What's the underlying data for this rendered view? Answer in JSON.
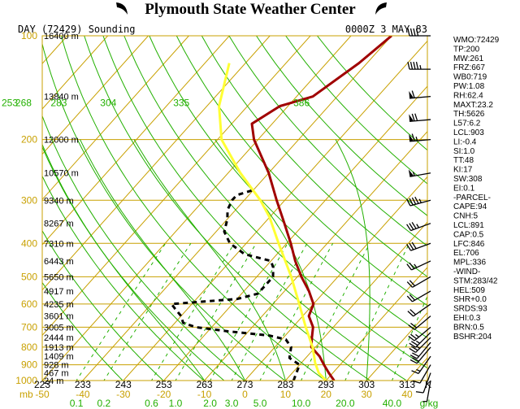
{
  "chart_data": {
    "type": "line",
    "title": "Plymouth State Weather Center",
    "subtitle_left": "DAY (72429) Sounding",
    "subtitle_right": "0000Z  3 MAY 83",
    "pressure_labels": [
      "100",
      "200",
      "300",
      "400",
      "500",
      "600",
      "700",
      "800",
      "900",
      "1000"
    ],
    "pressure_levels": [
      100,
      200,
      300,
      400,
      500,
      600,
      700,
      800,
      900,
      1000
    ],
    "height_labels": [
      {
        "p": 100,
        "label": "16400 m"
      },
      {
        "p": 150,
        "label": "13840 m"
      },
      {
        "p": 200,
        "label": "12000 m"
      },
      {
        "p": 250,
        "label": "10570 m"
      },
      {
        "p": 300,
        "label": "9340 m"
      },
      {
        "p": 350,
        "label": "8267 m"
      },
      {
        "p": 400,
        "label": "7310 m"
      },
      {
        "p": 450,
        "label": "6443 m"
      },
      {
        "p": 500,
        "label": "5650 m"
      },
      {
        "p": 550,
        "label": "4917 m"
      },
      {
        "p": 600,
        "label": "4235 m"
      },
      {
        "p": 650,
        "label": "3601 m"
      },
      {
        "p": 700,
        "label": "3005 m"
      },
      {
        "p": 750,
        "label": "2444 m"
      },
      {
        "p": 800,
        "label": "1913 m"
      },
      {
        "p": 850,
        "label": "1409 m"
      },
      {
        "p": 900,
        "label": "928 m"
      },
      {
        "p": 950,
        "label": "467 m"
      },
      {
        "p": 1000,
        "label": "24 m"
      }
    ],
    "kelvin_axis": {
      "values": [
        223,
        233,
        243,
        253,
        263,
        273,
        283,
        293,
        303,
        313
      ],
      "unit": "K",
      "labels": [
        "223",
        "233",
        "243",
        "253",
        "263",
        "273",
        "283",
        "293",
        "303",
        "313"
      ]
    },
    "celsius_axis": {
      "values": [
        -50,
        -40,
        -30,
        -20,
        -10,
        0,
        10,
        20,
        30,
        40
      ],
      "labels": [
        "-50",
        "-40",
        "-30",
        "-20",
        "-10",
        "0",
        "10",
        "20",
        "30",
        "40"
      ],
      "prefix": "mb"
    },
    "mixing_ratio_axis": {
      "values": [
        0.1,
        0.2,
        0.6,
        1.0,
        2.0,
        3.0,
        5.0,
        10.0,
        20.0,
        40.0
      ],
      "labels": [
        "0.1",
        "0.2",
        "0.6",
        "1.0",
        "2.0",
        "3.0",
        "5.0",
        "10.0",
        "20.0",
        "40.0"
      ],
      "unit": "g/kg"
    },
    "theta_labels": [
      {
        "theta": 253,
        "label": "253"
      },
      {
        "theta": 268,
        "label": "268"
      },
      {
        "theta": 283,
        "label": "283"
      },
      {
        "theta": 304,
        "label": "304"
      },
      {
        "theta": 335,
        "label": "335"
      },
      {
        "theta": 386,
        "label": "386"
      }
    ],
    "series": [
      {
        "name": "Temperature",
        "color": "#a00000",
        "points": [
          [
            1000,
            22
          ],
          [
            950,
            19
          ],
          [
            900,
            16
          ],
          [
            850,
            13
          ],
          [
            800,
            9
          ],
          [
            750,
            7
          ],
          [
            700,
            5
          ],
          [
            650,
            1.5
          ],
          [
            600,
            0
          ],
          [
            550,
            -4
          ],
          [
            500,
            -9
          ],
          [
            450,
            -14
          ],
          [
            400,
            -19
          ],
          [
            350,
            -25
          ],
          [
            300,
            -32
          ],
          [
            250,
            -40
          ],
          [
            200,
            -51
          ],
          [
            180,
            -55
          ],
          [
            160,
            -52
          ],
          [
            150,
            -46
          ],
          [
            120,
            -42
          ],
          [
            100,
            -40
          ]
        ]
      },
      {
        "name": "Dewpoint",
        "color": "#000000",
        "dashed": true,
        "points": [
          [
            1000,
            12
          ],
          [
            950,
            11
          ],
          [
            900,
            10
          ],
          [
            880,
            8
          ],
          [
            860,
            6
          ],
          [
            800,
            4
          ],
          [
            760,
            1
          ],
          [
            740,
            -4
          ],
          [
            720,
            -15
          ],
          [
            700,
            -24
          ],
          [
            680,
            -28
          ],
          [
            650,
            -30
          ],
          [
            620,
            -33
          ],
          [
            600,
            -35
          ],
          [
            580,
            -20
          ],
          [
            560,
            -16
          ],
          [
            530,
            -16
          ],
          [
            500,
            -16
          ],
          [
            470,
            -18
          ],
          [
            450,
            -20
          ],
          [
            430,
            -28
          ],
          [
            400,
            -34
          ],
          [
            370,
            -38
          ],
          [
            340,
            -40
          ],
          [
            320,
            -42
          ],
          [
            300,
            -43
          ],
          [
            290,
            -43
          ],
          [
            280,
            -40
          ]
        ]
      },
      {
        "name": "Parcel",
        "color": "#ffff33",
        "points": [
          [
            1000,
            20
          ],
          [
            950,
            16.5
          ],
          [
            900,
            14
          ],
          [
            891,
            13.5
          ],
          [
            846,
            11.5
          ],
          [
            800,
            9.3
          ],
          [
            700,
            3.2
          ],
          [
            600,
            -3.5
          ],
          [
            500,
            -11.5
          ],
          [
            400,
            -22
          ],
          [
            336,
            -30
          ],
          [
            300,
            -36
          ],
          [
            250,
            -47
          ],
          [
            200,
            -59
          ],
          [
            160,
            -67
          ],
          [
            120,
            -74
          ]
        ]
      }
    ],
    "winds": [
      {
        "p": 100,
        "dir": 270,
        "spd": 40
      },
      {
        "p": 125,
        "dir": 270,
        "spd": 45
      },
      {
        "p": 150,
        "dir": 265,
        "spd": 60
      },
      {
        "p": 175,
        "dir": 265,
        "spd": 70
      },
      {
        "p": 200,
        "dir": 265,
        "spd": 65
      },
      {
        "p": 250,
        "dir": 260,
        "spd": 55
      },
      {
        "p": 300,
        "dir": 255,
        "spd": 45
      },
      {
        "p": 350,
        "dir": 250,
        "spd": 35
      },
      {
        "p": 400,
        "dir": 250,
        "spd": 30
      },
      {
        "p": 450,
        "dir": 245,
        "spd": 25
      },
      {
        "p": 500,
        "dir": 240,
        "spd": 20
      },
      {
        "p": 550,
        "dir": 240,
        "spd": 20
      },
      {
        "p": 600,
        "dir": 235,
        "spd": 20
      },
      {
        "p": 650,
        "dir": 230,
        "spd": 20
      },
      {
        "p": 700,
        "dir": 230,
        "spd": 25
      },
      {
        "p": 725,
        "dir": 225,
        "spd": 25
      },
      {
        "p": 750,
        "dir": 225,
        "spd": 25
      },
      {
        "p": 775,
        "dir": 220,
        "spd": 20
      },
      {
        "p": 800,
        "dir": 220,
        "spd": 20
      },
      {
        "p": 850,
        "dir": 215,
        "spd": 15
      },
      {
        "p": 900,
        "dir": 210,
        "spd": 10
      },
      {
        "p": 950,
        "dir": 200,
        "spd": 10
      },
      {
        "p": 1000,
        "dir": 190,
        "spd": 5
      }
    ],
    "indices": [
      "WMO:72429",
      "TP:200",
      "MW:261",
      "FRZ:667",
      "WB0:719",
      "PW:1.08",
      "RH:62.4",
      "MAXT:23.2",
      "TH:5626",
      "L57:6.2",
      "LCL:903",
      "LI:-0.4",
      "SI:1.0",
      "TT:48",
      "KI:17",
      "SW:308",
      "EI:0.1",
      "-PARCEL-",
      "CAPE:94",
      "CNH:5",
      "LCL:891",
      "CAP:0.5",
      "LFC:846",
      "EL:706",
      "MPL:336",
      "-WIND-",
      "STM:283/42",
      "HEL:509",
      "SHR+0.0",
      "SRDS:93",
      "EHI:0.3",
      "BRN:0.5",
      "BSHR:204"
    ]
  }
}
